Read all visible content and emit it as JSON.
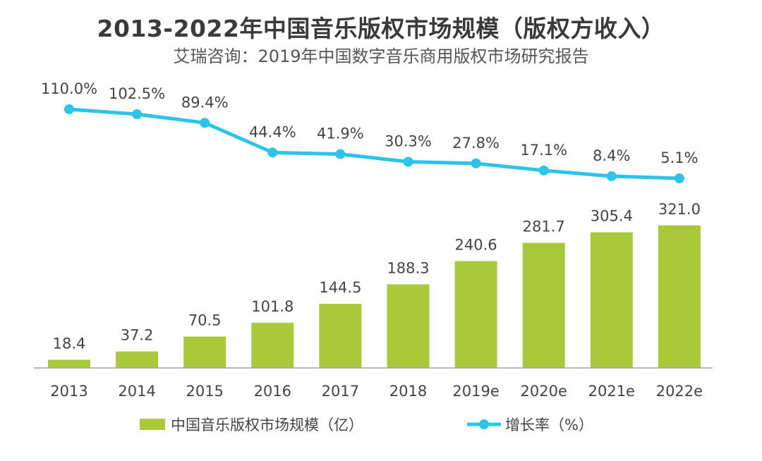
{
  "chart_data": {
    "type": "bar",
    "title": "2013-2022年中国音乐版权市场规模（版权方收入）",
    "subtitle": "艾瑞咨询：2019年中国数字音乐商用版权市场研究报告",
    "categories": [
      "2013",
      "2014",
      "2015",
      "2016",
      "2017",
      "2018",
      "2019e",
      "2020e",
      "2021e",
      "2022e"
    ],
    "series": [
      {
        "name": "中国音乐版权市场规模（亿）",
        "type": "bar",
        "color": "#a8c93a",
        "values": [
          18.4,
          37.2,
          70.5,
          101.8,
          144.5,
          188.3,
          240.6,
          281.7,
          305.4,
          321.0
        ],
        "labels": [
          "18.4",
          "37.2",
          "70.5",
          "101.8",
          "144.5",
          "188.3",
          "240.6",
          "281.7",
          "305.4",
          "321.0"
        ]
      },
      {
        "name": "增长率（%）",
        "type": "line",
        "color": "#2cc4e8",
        "values": [
          110.0,
          102.5,
          89.4,
          44.4,
          41.9,
          30.3,
          27.8,
          17.1,
          8.4,
          5.1
        ],
        "labels": [
          "110.0%",
          "102.5%",
          "89.4%",
          "44.4%",
          "41.9%",
          "30.3%",
          "27.8%",
          "17.1%",
          "8.4%",
          "5.1%"
        ]
      }
    ],
    "legend_position": "bottom",
    "grid": false
  }
}
